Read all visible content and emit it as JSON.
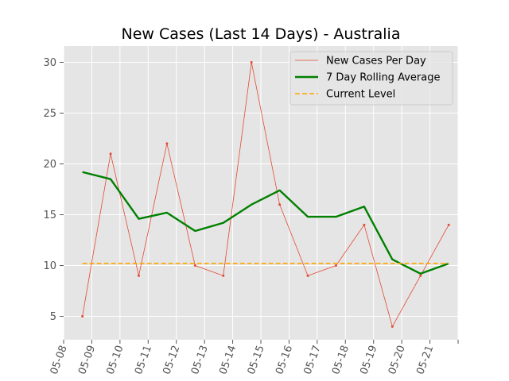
{
  "chart_data": {
    "type": "line",
    "title": "New Cases (Last 14 Days) - Australia",
    "xlabel": "",
    "ylabel": "",
    "x_tick_labels": [
      "05-08",
      "05-09",
      "05-10",
      "05-11",
      "05-12",
      "05-13",
      "05-14",
      "05-15",
      "05-16",
      "05-17",
      "05-18",
      "05-19",
      "05-20",
      "05-21"
    ],
    "ylim": [
      2.7,
      31.6
    ],
    "y_ticks": [
      5,
      10,
      15,
      20,
      25,
      30
    ],
    "grid": true,
    "style": "ggplot",
    "legend_position": "top-right",
    "series": [
      {
        "name": "New Cases Per Day",
        "color": "#E24A33",
        "style": "thin line with small markers",
        "x": [
          "2020-05-08 16:00",
          "2020-05-09 16:00",
          "2020-05-10 16:00",
          "2020-05-11 16:00",
          "2020-05-12 16:00",
          "2020-05-13 16:00",
          "2020-05-14 16:00",
          "2020-05-15 16:00",
          "2020-05-16 16:00",
          "2020-05-17 16:00",
          "2020-05-18 16:00",
          "2020-05-19 16:00",
          "2020-05-20 16:00",
          "2020-05-21 16:00"
        ],
        "values": [
          5,
          21,
          9,
          22,
          10,
          9,
          30,
          16,
          9,
          10,
          14,
          4,
          9,
          14
        ]
      },
      {
        "name": "7 Day Rolling Average",
        "color": "#008000",
        "style": "thick solid line",
        "x": [
          "2020-05-08 16:00",
          "2020-05-09 16:00",
          "2020-05-10 16:00",
          "2020-05-11 16:00",
          "2020-05-12 16:00",
          "2020-05-13 16:00",
          "2020-05-14 16:00",
          "2020-05-15 16:00",
          "2020-05-16 16:00",
          "2020-05-17 16:00",
          "2020-05-18 16:00",
          "2020-05-19 16:00",
          "2020-05-20 16:00",
          "2020-05-21 16:00"
        ],
        "values": [
          19.2,
          18.5,
          14.6,
          15.2,
          13.4,
          14.2,
          16.0,
          17.4,
          14.8,
          14.8,
          15.8,
          10.6,
          9.2,
          10.2
        ]
      },
      {
        "name": "Current Level",
        "color": "#FFA500",
        "style": "dashed horizontal line",
        "x": [
          "2020-05-08 16:00",
          "2020-05-21 16:00"
        ],
        "values": [
          10.2,
          10.2
        ]
      }
    ]
  }
}
